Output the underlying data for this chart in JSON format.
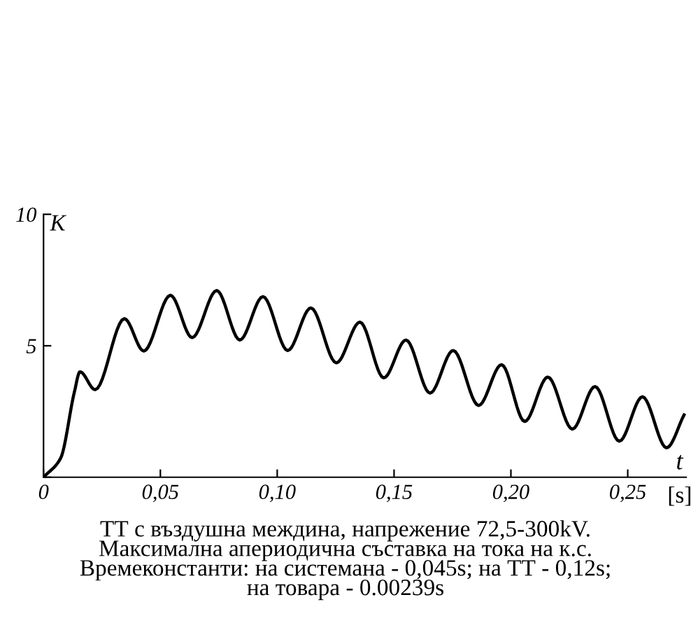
{
  "chart_data": {
    "type": "line",
    "xlabel": "t",
    "ylabel": "K",
    "x": [
      0,
      0.0073,
      0.0132,
      0.0156,
      0.0221,
      0.0346,
      0.0429,
      0.0543,
      0.0636,
      0.0741,
      0.084,
      0.0939,
      0.1045,
      0.1144,
      0.1253,
      0.1354,
      0.1456,
      0.1551,
      0.1654,
      0.1753,
      0.1862,
      0.196,
      0.2059,
      0.2158,
      0.2263,
      0.236,
      0.2464,
      0.2563,
      0.2666,
      0.2741
    ],
    "series": [
      {
        "color": "#000000",
        "values": [
          0,
          0.72,
          3.24,
          4.01,
          3.33,
          6.03,
          4.8,
          6.92,
          5.31,
          7.1,
          5.22,
          6.87,
          4.82,
          6.44,
          4.35,
          5.9,
          3.78,
          5.22,
          3.2,
          4.82,
          2.73,
          4.28,
          2.12,
          3.81,
          1.83,
          3.45,
          1.37,
          3.06,
          1.12,
          2.37
        ]
      }
    ],
    "xlim": [
      0,
      0.275
    ],
    "ylim": [
      0,
      10
    ],
    "xticks": [
      {
        "value": 0,
        "label": "0"
      },
      {
        "value": 0.05,
        "label": "0,05"
      },
      {
        "value": 0.1,
        "label": "0,10"
      },
      {
        "value": 0.15,
        "label": "0,15"
      },
      {
        "value": 0.2,
        "label": "0,20"
      },
      {
        "value": 0.25,
        "label": "0,25"
      }
    ],
    "yticks": [
      {
        "value": 0,
        "label": null
      },
      5,
      10
    ],
    "grid": false,
    "legend": false,
    "marker": "none",
    "line_style": "solid",
    "annotations": [
      "[s]",
      "ТТ с въздушна междина, напрежение 72,5-300kV.\nМаксимална апериодична съставка на тока на к.с.\nВремеконстанти: на системана - 0,045s; на ТТ - 0,12s;\nна товара - 0.00239s"
    ]
  }
}
